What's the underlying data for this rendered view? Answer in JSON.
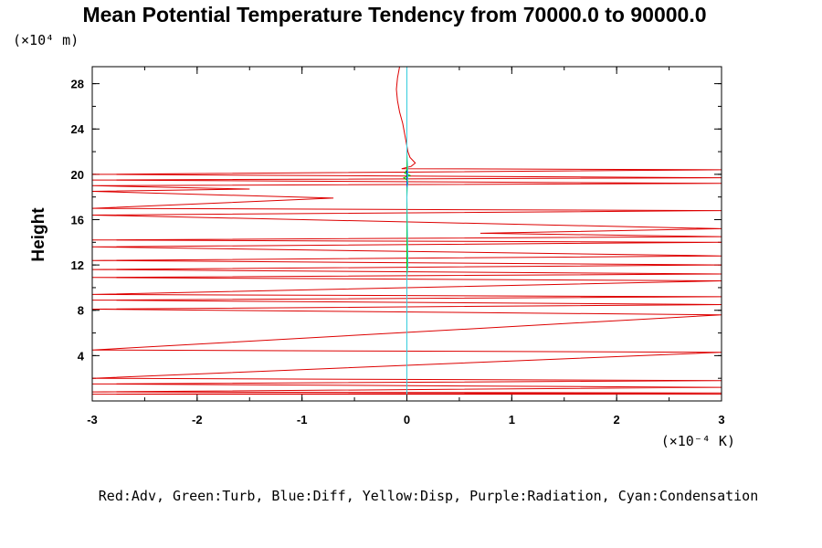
{
  "chart_data": {
    "type": "line",
    "title": "Mean Potential Temperature Tendency from 70000.0 to 90000.0",
    "ylabel": "Height",
    "y_unit": "(×10⁴ m)",
    "x_unit": "(×10⁻⁴ K)",
    "xlim": [
      -3,
      3
    ],
    "ylim": [
      0,
      29.5
    ],
    "x_ticks": [
      "-3",
      "-2",
      "-1",
      "0",
      "1",
      "2",
      "3"
    ],
    "y_ticks": [
      "4",
      "8",
      "12",
      "16",
      "20",
      "24",
      "28"
    ],
    "grid": false,
    "legend_text": "Red:Adv, Green:Turb, Blue:Diff, Yellow:Disp, Purple:Radiation, Cyan:Condensation",
    "colors": {
      "adv": "#dd0000",
      "turb": "#00cc00",
      "diff": "#0000ff",
      "disp": "#e8e800",
      "radiation": "#aa00cc",
      "condensation": "#33ccdd"
    },
    "series": [
      {
        "key": "adv",
        "x": [
          -0.07,
          -0.09,
          -0.1,
          -0.09,
          -0.07,
          -0.04,
          -0.02,
          0.0,
          0.01,
          0.03,
          0.08,
          0.04,
          -0.05,
          3,
          -3,
          3,
          -3,
          3,
          -3,
          -1.5,
          -3,
          -0.7,
          -3,
          3,
          -3,
          3,
          0.7,
          3,
          -3,
          3,
          -3,
          3,
          -3,
          3,
          -3,
          3,
          -3,
          3,
          -3,
          3,
          -3,
          3,
          -3,
          3,
          -3,
          3,
          -3,
          3,
          -3,
          3,
          -3,
          3,
          -3,
          3,
          0.0
        ],
        "y": [
          29.5,
          28.5,
          27.5,
          26.5,
          25.5,
          24.5,
          23.5,
          22.5,
          22.0,
          21.5,
          21.0,
          20.7,
          20.5,
          20.4,
          20.0,
          19.7,
          19.5,
          19.2,
          19.0,
          18.7,
          18.5,
          17.9,
          17.0,
          16.8,
          16.4,
          15.2,
          14.8,
          14.5,
          14.2,
          14.0,
          13.6,
          12.8,
          12.4,
          12.0,
          11.6,
          11.2,
          10.9,
          10.6,
          9.4,
          9.2,
          8.9,
          8.5,
          8.1,
          7.6,
          4.5,
          4.3,
          2.0,
          1.8,
          1.5,
          1.2,
          0.8,
          0.7,
          0.6,
          0.6,
          0.6
        ]
      },
      {
        "key": "turb",
        "x": [
          0.0,
          0.0,
          0.01,
          0.0,
          -0.03,
          0.03,
          -0.02,
          0.0,
          0.0,
          0.0
        ],
        "y": [
          0.6,
          18.8,
          19.2,
          19.5,
          19.7,
          19.9,
          20.1,
          20.4,
          22.0,
          29.5
        ]
      },
      {
        "key": "diff",
        "x": [
          0.0,
          0.0
        ],
        "y": [
          0.6,
          29.5
        ]
      },
      {
        "key": "disp",
        "x": [
          0.0,
          0.0
        ],
        "y": [
          0.6,
          29.5
        ]
      },
      {
        "key": "radiation",
        "x": [
          0.0,
          0.0
        ],
        "y": [
          0.6,
          29.5
        ]
      },
      {
        "key": "condensation",
        "x": [
          0.0,
          0.0,
          0.01,
          0.0,
          0.01,
          0.0,
          0.0
        ],
        "y": [
          0.6,
          11.0,
          12.0,
          18.0,
          20.0,
          22.0,
          29.5
        ]
      }
    ]
  }
}
